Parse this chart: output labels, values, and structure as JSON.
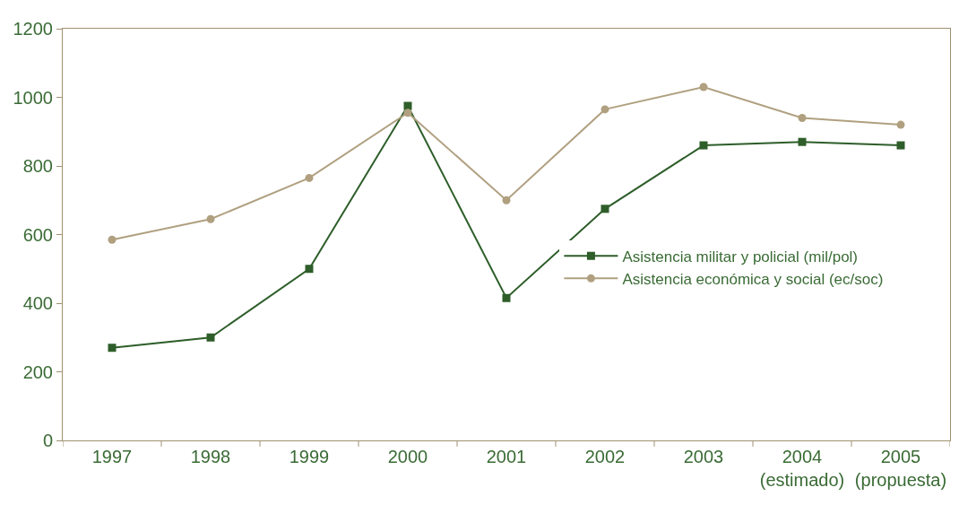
{
  "chart_data": {
    "type": "line",
    "categories": [
      "1997",
      "1998",
      "1999",
      "2000",
      "2001",
      "2002",
      "2003",
      "2004\n(estimado)",
      "2005\n(propuesta)"
    ],
    "series": [
      {
        "name": "Asistencia militar y policial (mil/pol)",
        "color": "#2e5e2a",
        "marker": "square",
        "values": [
          270,
          300,
          500,
          975,
          415,
          675,
          860,
          870,
          860
        ]
      },
      {
        "name": "Asistencia económica y social (ec/soc)",
        "color": "#b0a080",
        "marker": "circle",
        "values": [
          585,
          645,
          765,
          955,
          700,
          965,
          1030,
          940,
          920
        ]
      }
    ],
    "ylim": [
      0,
      1200
    ],
    "yticks": [
      0,
      200,
      400,
      600,
      800,
      1000,
      1200
    ],
    "legend": "right",
    "line_style": "solid"
  }
}
